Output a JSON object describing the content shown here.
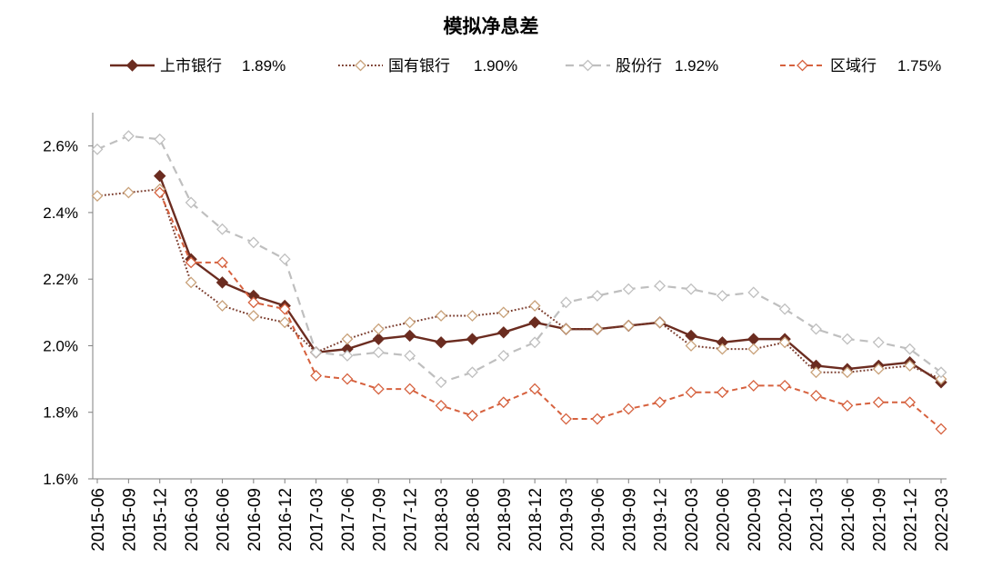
{
  "chart_data": {
    "type": "line",
    "title": "模拟净息差",
    "categories": [
      "2015-06",
      "2015-09",
      "2015-12",
      "2016-03",
      "2016-06",
      "2016-09",
      "2016-12",
      "2017-03",
      "2017-06",
      "2017-09",
      "2017-12",
      "2018-03",
      "2018-06",
      "2018-09",
      "2018-12",
      "2019-03",
      "2019-06",
      "2019-09",
      "2019-12",
      "2020-03",
      "2020-06",
      "2020-09",
      "2020-12",
      "2021-03",
      "2021-06",
      "2021-09",
      "2021-12",
      "2022-03"
    ],
    "ylim": [
      1.6,
      2.7
    ],
    "yticks": [
      {
        "value": 1.6,
        "label": "1.6%"
      },
      {
        "value": 1.8,
        "label": "1.8%"
      },
      {
        "value": 2.0,
        "label": "2.0%"
      },
      {
        "value": 2.2,
        "label": "2.2%"
      },
      {
        "value": 2.4,
        "label": "2.4%"
      },
      {
        "value": 2.6,
        "label": "2.6%"
      }
    ],
    "grid": false,
    "legend_position": "top",
    "series": [
      {
        "name": "上市银行",
        "legend_value": "1.89%",
        "line_style": "solid",
        "line_color": "#6B2C20",
        "marker_fill": "#6B2C20",
        "marker_stroke": "#6B2C20",
        "values": [
          null,
          null,
          2.51,
          2.26,
          2.19,
          2.15,
          2.12,
          1.98,
          1.99,
          2.02,
          2.03,
          2.01,
          2.02,
          2.04,
          2.07,
          2.05,
          2.05,
          2.06,
          2.07,
          2.03,
          2.01,
          2.02,
          2.02,
          1.94,
          1.93,
          1.94,
          1.95,
          1.89
        ]
      },
      {
        "name": "国有银行",
        "legend_value": "1.90%",
        "line_style": "dotted",
        "line_color": "#7A3B2C",
        "marker_fill": "#FFFFFF",
        "marker_stroke": "#C9A27A",
        "values": [
          2.45,
          2.46,
          2.47,
          2.19,
          2.12,
          2.09,
          2.07,
          1.98,
          2.02,
          2.05,
          2.07,
          2.09,
          2.09,
          2.1,
          2.12,
          2.05,
          2.05,
          2.06,
          2.07,
          2.0,
          1.99,
          1.99,
          2.01,
          1.92,
          1.92,
          1.93,
          1.94,
          1.9
        ]
      },
      {
        "name": "股份行",
        "legend_value": "1.92%",
        "line_style": "dashed",
        "line_color": "#BFBFBF",
        "marker_fill": "#FFFFFF",
        "marker_stroke": "#BFBFBF",
        "values": [
          2.59,
          2.63,
          2.62,
          2.43,
          2.35,
          2.31,
          2.26,
          1.98,
          1.97,
          1.98,
          1.97,
          1.89,
          1.92,
          1.97,
          2.01,
          2.13,
          2.15,
          2.17,
          2.18,
          2.17,
          2.15,
          2.16,
          2.11,
          2.05,
          2.02,
          2.01,
          1.99,
          1.92
        ]
      },
      {
        "name": "区域行",
        "legend_value": "1.75%",
        "line_style": "dashed",
        "line_color": "#D6613E",
        "marker_fill": "#FFFFFF",
        "marker_stroke": "#D6613E",
        "values": [
          null,
          null,
          2.46,
          2.25,
          2.25,
          2.13,
          2.11,
          1.91,
          1.9,
          1.87,
          1.87,
          1.82,
          1.79,
          1.83,
          1.87,
          1.78,
          1.78,
          1.81,
          1.83,
          1.86,
          1.86,
          1.88,
          1.88,
          1.85,
          1.82,
          1.83,
          1.83,
          1.75
        ]
      }
    ]
  }
}
